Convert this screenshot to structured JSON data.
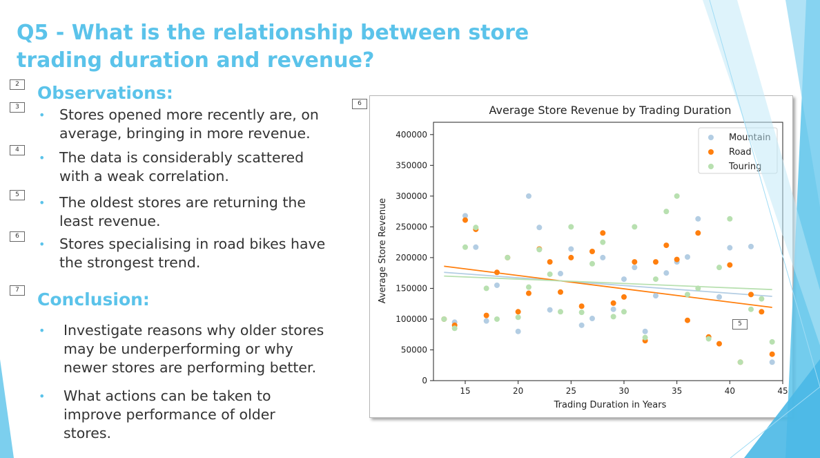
{
  "slide": {
    "title": "Q5 - What is the relationship between store trading duration and revenue?",
    "observations_heading": "Observations:",
    "observations": [
      "Stores opened more recently are, on average, bringing in more revenue.",
      "The data is considerably scattered with a weak correlation.",
      "The oldest stores are returning the least revenue.",
      "Stores specialising in road bikes have the strongest trend."
    ],
    "conclusion_heading": "Conclusion:",
    "conclusions": [
      "Investigate reasons why older stores may be underperforming or why newer stores are performing better.",
      "What actions can be taken to improve performance of older stores."
    ],
    "slide_refs": [
      "2",
      "3",
      "4",
      "5",
      "6",
      "7",
      "6",
      "5"
    ]
  },
  "colors": {
    "accent": "#5bc3ea",
    "mountain": "#b3cde3",
    "road": "#ff7f0e",
    "touring": "#b8e0b0"
  },
  "chart_data": {
    "type": "scatter",
    "title": "Average Store Revenue by Trading Duration",
    "xlabel": "Trading Duration in Years",
    "ylabel": "Average Store Revenue",
    "xlim": [
      12,
      45
    ],
    "ylim": [
      0,
      420000
    ],
    "xticks": [
      15,
      20,
      25,
      30,
      35,
      40,
      45
    ],
    "yticks": [
      0,
      50000,
      100000,
      150000,
      200000,
      250000,
      300000,
      350000,
      400000
    ],
    "grid": false,
    "legend": "top-right",
    "series": [
      {
        "name": "Mountain",
        "color": "#b3cde3",
        "points": [
          [
            13,
            100000
          ],
          [
            14,
            95000
          ],
          [
            15,
            268000
          ],
          [
            16,
            217000
          ],
          [
            17,
            97000
          ],
          [
            18,
            155000
          ],
          [
            20,
            80000
          ],
          [
            21,
            300000
          ],
          [
            22,
            249000
          ],
          [
            23,
            115000
          ],
          [
            24,
            174000
          ],
          [
            25,
            214000
          ],
          [
            26,
            90000
          ],
          [
            27,
            101000
          ],
          [
            28,
            200000
          ],
          [
            29,
            116000
          ],
          [
            30,
            165000
          ],
          [
            31,
            184000
          ],
          [
            32,
            80000
          ],
          [
            33,
            138000
          ],
          [
            34,
            175000
          ],
          [
            35,
            193000
          ],
          [
            36,
            201000
          ],
          [
            37,
            263000
          ],
          [
            39,
            136000
          ],
          [
            40,
            216000
          ],
          [
            42,
            218000
          ],
          [
            44,
            30000
          ]
        ],
        "trend": [
          [
            13,
            176000
          ],
          [
            44,
            137000
          ]
        ]
      },
      {
        "name": "Road",
        "color": "#ff7f0e",
        "points": [
          [
            13,
            100000
          ],
          [
            14,
            90000
          ],
          [
            15,
            261000
          ],
          [
            16,
            246000
          ],
          [
            17,
            106000
          ],
          [
            18,
            176000
          ],
          [
            19,
            200000
          ],
          [
            20,
            112000
          ],
          [
            21,
            142000
          ],
          [
            22,
            214000
          ],
          [
            23,
            193000
          ],
          [
            24,
            144000
          ],
          [
            25,
            200000
          ],
          [
            26,
            121000
          ],
          [
            27,
            210000
          ],
          [
            28,
            240000
          ],
          [
            29,
            126000
          ],
          [
            30,
            136000
          ],
          [
            31,
            193000
          ],
          [
            32,
            65000
          ],
          [
            33,
            193000
          ],
          [
            34,
            220000
          ],
          [
            35,
            197000
          ],
          [
            36,
            98000
          ],
          [
            37,
            240000
          ],
          [
            38,
            71000
          ],
          [
            39,
            60000
          ],
          [
            40,
            188000
          ],
          [
            41,
            30000
          ],
          [
            42,
            140000
          ],
          [
            43,
            112000
          ],
          [
            44,
            43000
          ]
        ],
        "trend": [
          [
            13,
            186000
          ],
          [
            44,
            119000
          ]
        ]
      },
      {
        "name": "Touring",
        "color": "#b8e0b0",
        "points": [
          [
            13,
            100000
          ],
          [
            14,
            85000
          ],
          [
            15,
            217000
          ],
          [
            16,
            249000
          ],
          [
            17,
            150000
          ],
          [
            18,
            100000
          ],
          [
            19,
            200000
          ],
          [
            20,
            103000
          ],
          [
            21,
            152000
          ],
          [
            22,
            213000
          ],
          [
            23,
            173000
          ],
          [
            24,
            112000
          ],
          [
            25,
            250000
          ],
          [
            26,
            111000
          ],
          [
            27,
            190000
          ],
          [
            28,
            225000
          ],
          [
            29,
            104000
          ],
          [
            30,
            112000
          ],
          [
            31,
            250000
          ],
          [
            32,
            70000
          ],
          [
            33,
            165000
          ],
          [
            34,
            275000
          ],
          [
            35,
            300000
          ],
          [
            36,
            140000
          ],
          [
            37,
            150000
          ],
          [
            38,
            68000
          ],
          [
            39,
            184000
          ],
          [
            40,
            263000
          ],
          [
            41,
            30000
          ],
          [
            42,
            116000
          ],
          [
            43,
            133000
          ],
          [
            44,
            63000
          ]
        ],
        "trend": [
          [
            13,
            170000
          ],
          [
            44,
            148000
          ]
        ]
      }
    ]
  }
}
